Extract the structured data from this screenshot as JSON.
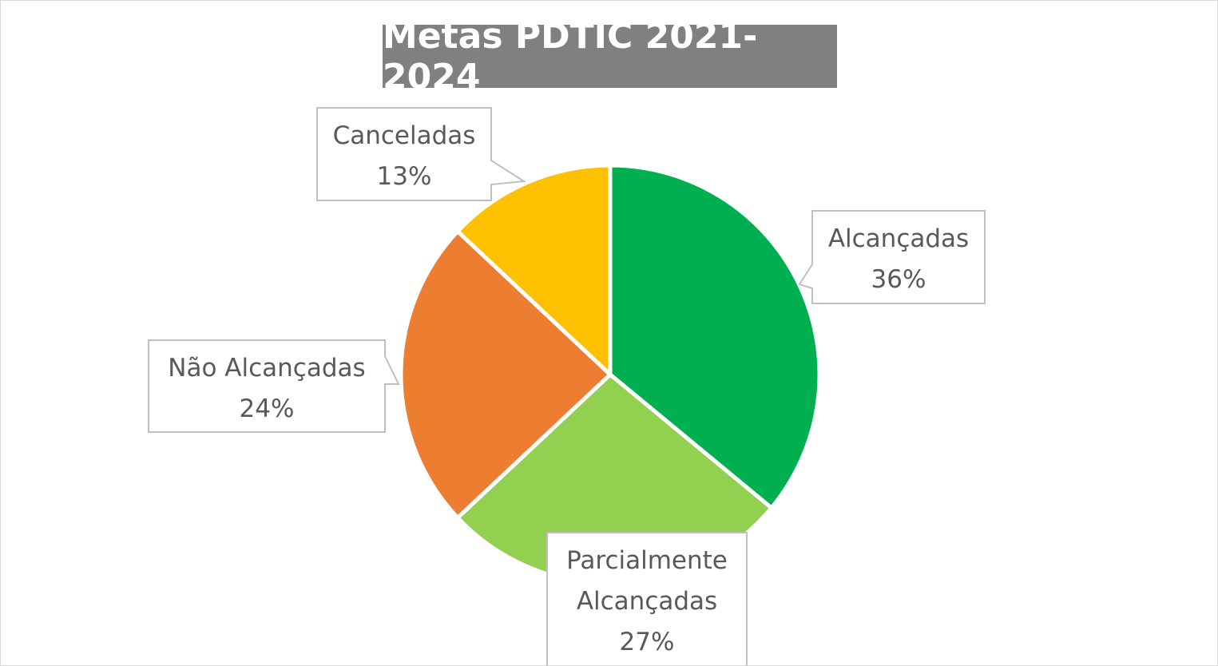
{
  "chart_data": {
    "type": "pie",
    "title": "Metas PDTIC 2021-2024",
    "start_angle": "top, clockwise",
    "slices": [
      {
        "label": [
          "Alcançadas"
        ],
        "value": 36,
        "value_label": "36%",
        "color": "#00B050"
      },
      {
        "label": [
          "Parcialmente",
          "Alcançadas"
        ],
        "value": 27,
        "value_label": "27%",
        "color": "#92D050"
      },
      {
        "label": [
          "Não Alcançadas"
        ],
        "value": 24,
        "value_label": "24%",
        "color": "#ED7D31"
      },
      {
        "label": [
          "Canceladas"
        ],
        "value": 13,
        "value_label": "13%",
        "color": "#FFC000"
      }
    ],
    "data_labels": "callouts with category name and percentage",
    "legend": "none"
  },
  "colors": {
    "title_bg": "#808080",
    "title_text": "#FFFFFF",
    "label_text": "#595959",
    "callout_border": "#BFBFBF"
  }
}
